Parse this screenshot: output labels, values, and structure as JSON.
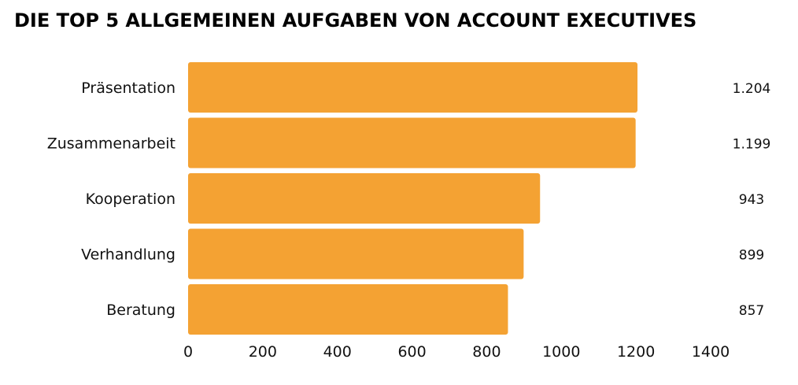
{
  "chart_data": {
    "type": "bar",
    "orientation": "horizontal",
    "title": "DIE TOP 5 ALLGEMEINEN AUFGABEN VON ACCOUNT EXECUTIVES",
    "categories": [
      "Präsentation",
      "Zusammenarbeit",
      "Kooperation",
      "Verhandlung",
      "Beratung"
    ],
    "values": [
      1204,
      1199,
      943,
      899,
      857
    ],
    "value_labels": [
      "1.204",
      "1.199",
      "943",
      "899",
      "857"
    ],
    "xlim": [
      0,
      1400
    ],
    "xticks": [
      "0",
      "200",
      "400",
      "600",
      "800",
      "1000",
      "1200",
      "1400"
    ],
    "xlabel": "",
    "ylabel": "",
    "bar_color": "#F4A233",
    "grid": false,
    "legend": "none"
  }
}
